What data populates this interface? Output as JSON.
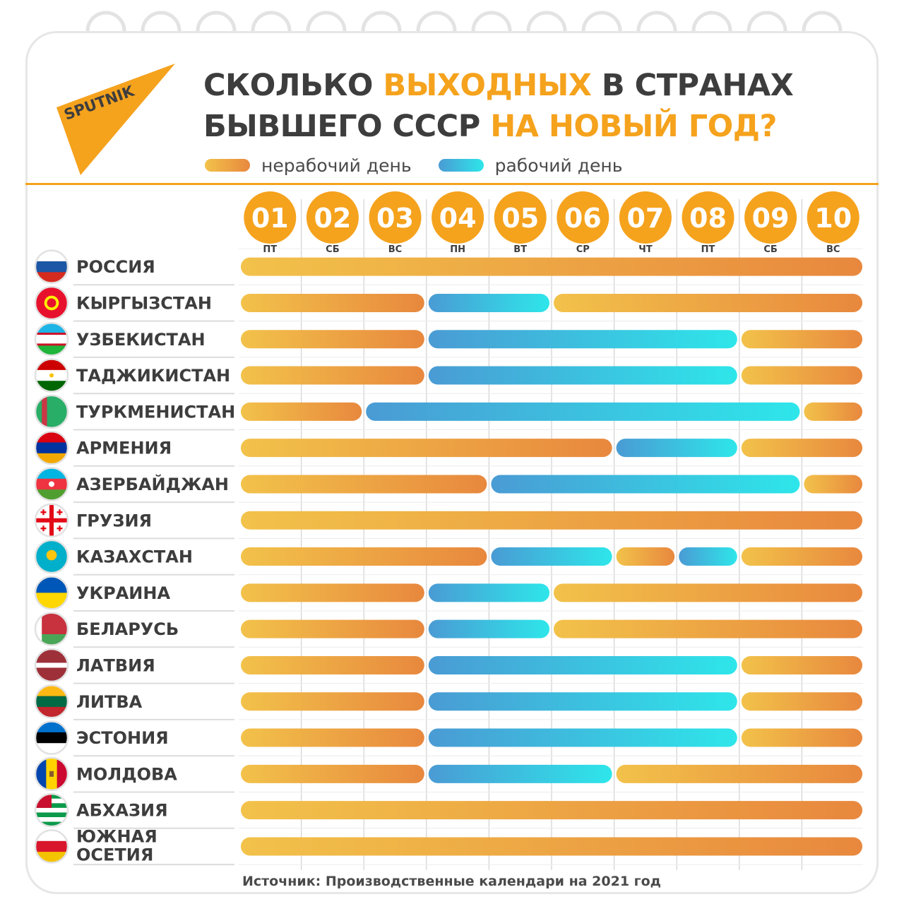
{
  "header": {
    "logo_text": "SPUTNIK",
    "title_line1_a": "СКОЛЬКО ",
    "title_line1_b": "ВЫХОДНЫХ",
    "title_line1_c": " В СТРАНАХ",
    "title_line2_a": "БЫВШЕГО СССР ",
    "title_line2_b": "НА НОВЫЙ ГОД?"
  },
  "legend": {
    "nonworking_label": "нерабочий день",
    "working_label": "рабочий день"
  },
  "colors": {
    "nonworking": [
      "#f2c24a",
      "#e8883e"
    ],
    "working": [
      "#4a9bd4",
      "#2ee6ea"
    ],
    "accent": "#f5a21d",
    "text": "#3d3d3d"
  },
  "chart_data": {
    "type": "table",
    "columns": [
      {
        "date": "01",
        "weekday": "ПТ"
      },
      {
        "date": "02",
        "weekday": "СБ"
      },
      {
        "date": "03",
        "weekday": "ВС"
      },
      {
        "date": "04",
        "weekday": "ПН"
      },
      {
        "date": "05",
        "weekday": "ВТ"
      },
      {
        "date": "06",
        "weekday": "СР"
      },
      {
        "date": "07",
        "weekday": "ЧТ"
      },
      {
        "date": "08",
        "weekday": "ПТ"
      },
      {
        "date": "09",
        "weekday": "СБ"
      },
      {
        "date": "10",
        "weekday": "ВС"
      }
    ],
    "rows": [
      [
        "РОССИЯ",
        "нерабочий день",
        "нерабочий день",
        "нерабочий день",
        "нерабочий день",
        "нерабочий день",
        "нерабочий день",
        "нерабочий день",
        "нерабочий день",
        "нерабочий день",
        "нерабочий день"
      ],
      [
        "КЫРГЫЗСТАН",
        "нерабочий день",
        "нерабочий день",
        "нерабочий день",
        "рабочий день",
        "рабочий день",
        "нерабочий день",
        "нерабочий день",
        "нерабочий день",
        "нерабочий день",
        "нерабочий день"
      ],
      [
        "УЗБЕКИСТАН",
        "нерабочий день",
        "нерабочий день",
        "нерабочий день",
        "рабочий день",
        "рабочий день",
        "рабочий день",
        "рабочий день",
        "рабочий день",
        "нерабочий день",
        "нерабочий день"
      ],
      [
        "ТАДЖИКИСТАН",
        "нерабочий день",
        "нерабочий день",
        "нерабочий день",
        "рабочий день",
        "рабочий день",
        "рабочий день",
        "рабочий день",
        "рабочий день",
        "нерабочий день",
        "нерабочий день"
      ],
      [
        "ТУРКМЕНИСТАН",
        "нерабочий день",
        "нерабочий день",
        "рабочий день",
        "рабочий день",
        "рабочий день",
        "рабочий день",
        "рабочий день",
        "рабочий день",
        "рабочий день",
        "нерабочий день"
      ],
      [
        "АРМЕНИЯ",
        "нерабочий день",
        "нерабочий день",
        "нерабочий день",
        "нерабочий день",
        "нерабочий день",
        "нерабочий день",
        "рабочий день",
        "рабочий день",
        "нерабочий день",
        "нерабочий день"
      ],
      [
        "АЗЕРБАЙДЖАН",
        "нерабочий день",
        "нерабочий день",
        "нерабочий день",
        "нерабочий день",
        "рабочий день",
        "рабочий день",
        "рабочий день",
        "рабочий день",
        "рабочий день",
        "нерабочий день"
      ],
      [
        "ГРУЗИЯ",
        "нерабочий день",
        "нерабочий день",
        "нерабочий день",
        "нерабочий день",
        "нерабочий день",
        "нерабочий день",
        "нерабочий день",
        "нерабочий день",
        "нерабочий день",
        "нерабочий день"
      ],
      [
        "КАЗАХСТАН",
        "нерабочий день",
        "нерабочий день",
        "нерабочий день",
        "нерабочий день",
        "рабочий день",
        "рабочий день",
        "нерабочий день",
        "рабочий день",
        "нерабочий день",
        "нерабочий день"
      ],
      [
        "УКРАИНА",
        "нерабочий день",
        "нерабочий день",
        "нерабочий день",
        "рабочий день",
        "рабочий день",
        "нерабочий день",
        "нерабочий день",
        "нерабочий день",
        "нерабочий день",
        "нерабочий день"
      ],
      [
        "БЕЛАРУСЬ",
        "нерабочий день",
        "нерабочий день",
        "нерабочий день",
        "рабочий день",
        "рабочий день",
        "нерабочий день",
        "нерабочий день",
        "нерабочий день",
        "нерабочий день",
        "нерабочий день"
      ],
      [
        "ЛАТВИЯ",
        "нерабочий день",
        "нерабочий день",
        "нерабочий день",
        "рабочий день",
        "рабочий день",
        "рабочий день",
        "рабочий день",
        "рабочий день",
        "нерабочий день",
        "нерабочий день"
      ],
      [
        "ЛИТВА",
        "нерабочий день",
        "нерабочий день",
        "нерабочий день",
        "рабочий день",
        "рабочий день",
        "рабочий день",
        "рабочий день",
        "рабочий день",
        "нерабочий день",
        "нерабочий день"
      ],
      [
        "ЭСТОНИЯ",
        "нерабочий день",
        "нерабочий день",
        "нерабочий день",
        "рабочий день",
        "рабочий день",
        "рабочий день",
        "рабочий день",
        "рабочий день",
        "нерабочий день",
        "нерабочий день"
      ],
      [
        "МОЛДОВА",
        "нерабочий день",
        "нерабочий день",
        "нерабочий день",
        "рабочий день",
        "рабочий день",
        "рабочий день",
        "нерабочий день",
        "нерабочий день",
        "нерабочий день",
        "нерабочий день"
      ],
      [
        "АБХАЗИЯ",
        "нерабочий день",
        "нерабочий день",
        "нерабочий день",
        "нерабочий день",
        "нерабочий день",
        "нерабочий день",
        "нерабочий день",
        "нерабочий день",
        "нерабочий день",
        "нерабочий день"
      ],
      [
        "ЮЖНАЯ ОСЕТИЯ",
        "нерабочий день",
        "нерабочий день",
        "нерабочий день",
        "нерабочий день",
        "нерабочий день",
        "нерабочий день",
        "нерабочий день",
        "нерабочий день",
        "нерабочий день",
        "нерабочий день"
      ]
    ],
    "row_labels_display": [
      [
        "РОССИЯ"
      ],
      [
        "КЫРГЫЗСТАН"
      ],
      [
        "УЗБЕКИСТАН"
      ],
      [
        "ТАДЖИКИСТАН"
      ],
      [
        "ТУРКМЕНИСТАН"
      ],
      [
        "АРМЕНИЯ"
      ],
      [
        "АЗЕРБАЙДЖАН"
      ],
      [
        "ГРУЗИЯ"
      ],
      [
        "КАЗАХСТАН"
      ],
      [
        "УКРАИНА"
      ],
      [
        "БЕЛАРУСЬ"
      ],
      [
        "ЛАТВИЯ"
      ],
      [
        "ЛИТВА"
      ],
      [
        "ЭСТОНИЯ"
      ],
      [
        "МОЛДОВА"
      ],
      [
        "АБХАЗИЯ"
      ],
      [
        "ЮЖНАЯ",
        "ОСЕТИЯ"
      ]
    ],
    "flag_icons": [
      "russia-flag-icon",
      "kyrgyzstan-flag-icon",
      "uzbekistan-flag-icon",
      "tajikistan-flag-icon",
      "turkmenistan-flag-icon",
      "armenia-flag-icon",
      "azerbaijan-flag-icon",
      "georgia-flag-icon",
      "kazakhstan-flag-icon",
      "ukraine-flag-icon",
      "belarus-flag-icon",
      "latvia-flag-icon",
      "lithuania-flag-icon",
      "estonia-flag-icon",
      "moldova-flag-icon",
      "abkhazia-flag-icon",
      "south-ossetia-flag-icon"
    ]
  },
  "footer": {
    "source": "Источник: Производственные календари на 2021 год"
  }
}
